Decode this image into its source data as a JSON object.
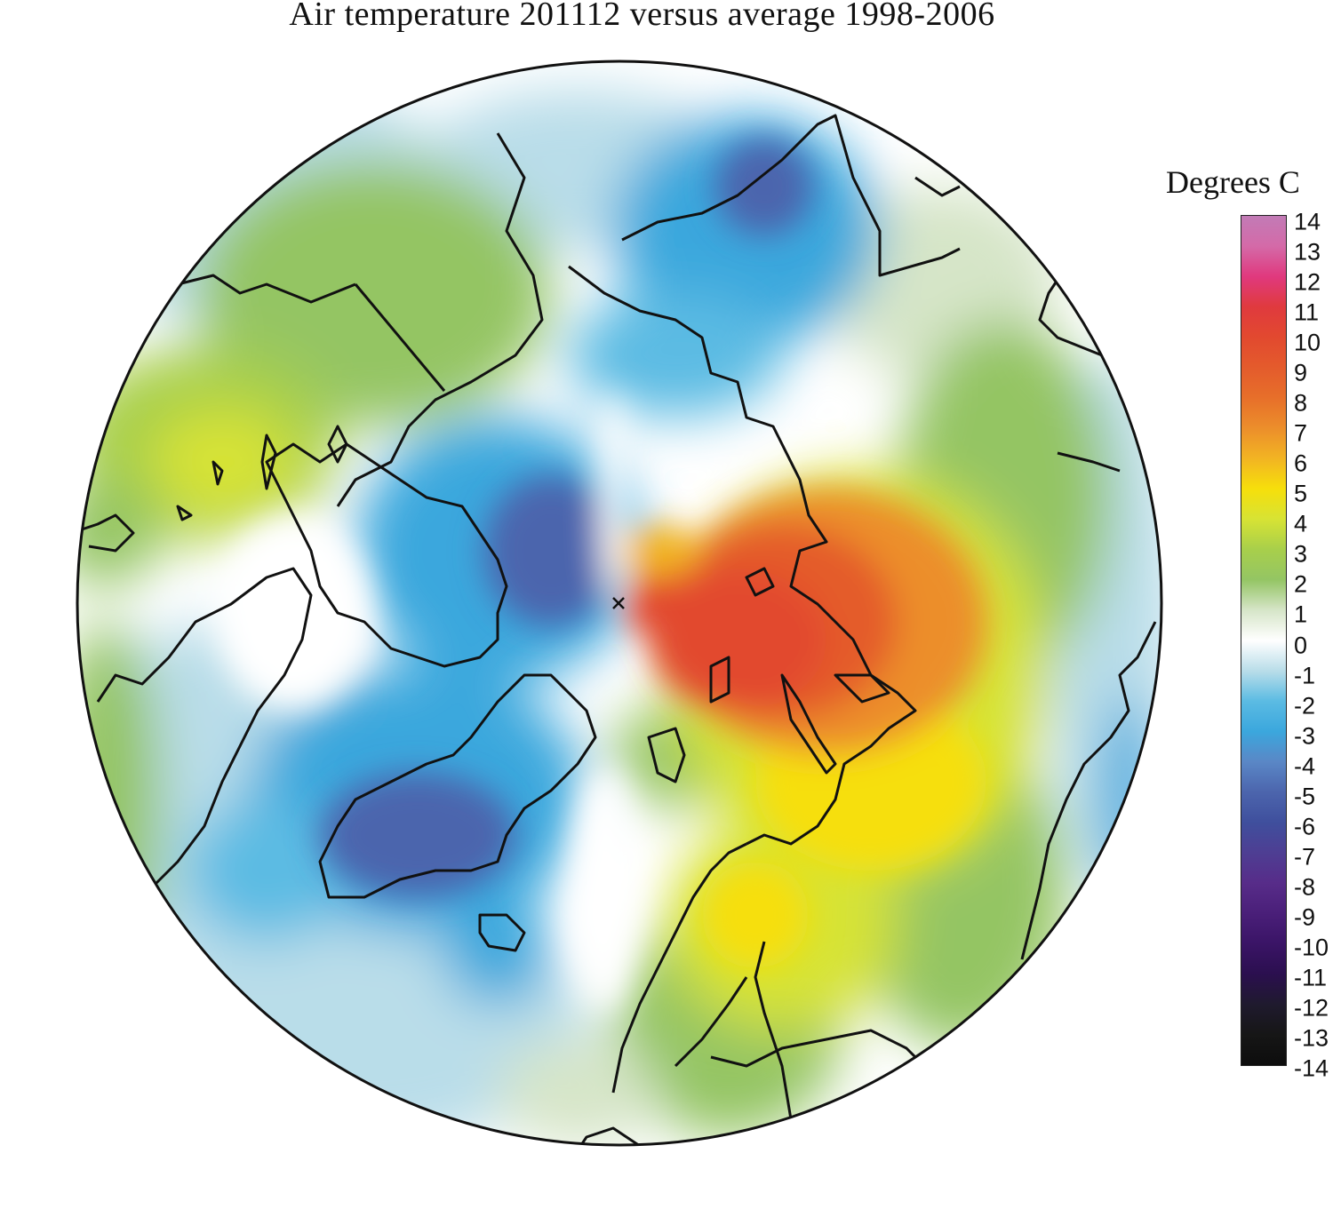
{
  "title": "Air temperature 201112 versus average 1998-2006",
  "legend": {
    "title": "Degrees C",
    "ticks": [
      "14",
      "13",
      "12",
      "11",
      "10",
      "9",
      "8",
      "7",
      "6",
      "5",
      "4",
      "3",
      "2",
      "1",
      "0",
      "-1",
      "-2",
      "-3",
      "-4",
      "-5",
      "-6",
      "-7",
      "-8",
      "-9",
      "-10",
      "-11",
      "-12",
      "-13",
      "-14"
    ],
    "range": [
      -14,
      14
    ],
    "colors": [
      {
        "v": 14,
        "c": "#c27bb6"
      },
      {
        "v": 13,
        "c": "#d46aa8"
      },
      {
        "v": 12,
        "c": "#e0397e"
      },
      {
        "v": 11,
        "c": "#e03a3e"
      },
      {
        "v": 10,
        "c": "#e2492f"
      },
      {
        "v": 9,
        "c": "#e45b2c"
      },
      {
        "v": 8,
        "c": "#e76f2a"
      },
      {
        "v": 7,
        "c": "#ec8e2b"
      },
      {
        "v": 6,
        "c": "#f2b423"
      },
      {
        "v": 5,
        "c": "#f6df0b"
      },
      {
        "v": 4,
        "c": "#d7e334"
      },
      {
        "v": 3,
        "c": "#a8cf4b"
      },
      {
        "v": 2,
        "c": "#94c564"
      },
      {
        "v": 1,
        "c": "#d6e5c8"
      },
      {
        "v": 0,
        "c": "#ffffff"
      },
      {
        "v": -1,
        "c": "#b9dde9"
      },
      {
        "v": -2,
        "c": "#5bbbe3"
      },
      {
        "v": -3,
        "c": "#3ba7dd"
      },
      {
        "v": -4,
        "c": "#5a87c6"
      },
      {
        "v": -5,
        "c": "#4c65ad"
      },
      {
        "v": -6,
        "c": "#3f4f9d"
      },
      {
        "v": -7,
        "c": "#4e3e93"
      },
      {
        "v": -8,
        "c": "#572c89"
      },
      {
        "v": -9,
        "c": "#4a1f79"
      },
      {
        "v": -10,
        "c": "#3a1466"
      },
      {
        "v": -11,
        "c": "#2b0f4f"
      },
      {
        "v": -12,
        "c": "#1f1a2e"
      },
      {
        "v": -13,
        "c": "#161616"
      },
      {
        "v": -14,
        "c": "#0d0d0d"
      }
    ]
  },
  "map": {
    "projection": "north polar stereographic",
    "warm_anomaly_region": "Barents/Kara Sea and northern Russia",
    "cold_anomaly_region": "Greenland and Canadian Arctic",
    "max_anomaly_approx": 10,
    "min_anomaly_approx": -5
  }
}
